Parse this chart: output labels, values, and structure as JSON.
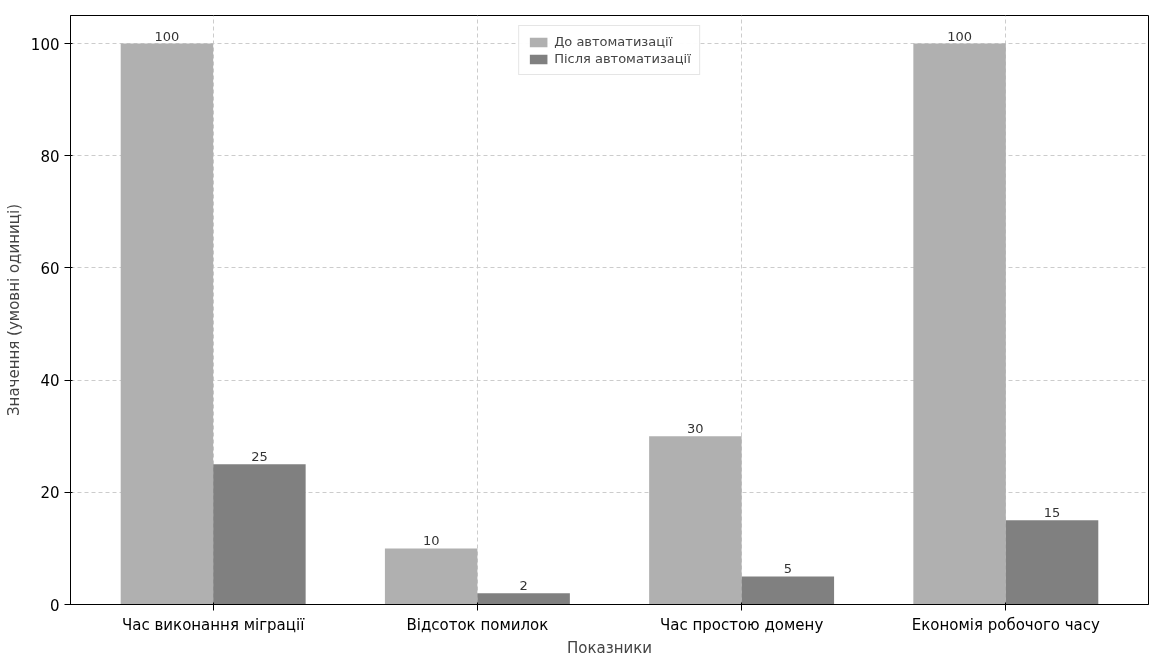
{
  "chart_data": {
    "type": "bar",
    "xlabel": "Показники",
    "ylabel": "Значення (умовні одиниці)",
    "categories": [
      "Час виконання міграції",
      "Відсоток помилок",
      "Час простою домену",
      "Економія робочого часу"
    ],
    "series": [
      {
        "name": "До автоматизації",
        "color": "#b0b0b0",
        "values": [
          100,
          10,
          30,
          100
        ]
      },
      {
        "name": "Після автоматизації",
        "color": "#808080",
        "values": [
          25,
          2,
          5,
          15
        ]
      }
    ],
    "ylim": [
      0,
      105
    ],
    "yticks": [
      0,
      20,
      40,
      60,
      80,
      100
    ],
    "grid": true,
    "legend": "top",
    "data_labels": true
  }
}
